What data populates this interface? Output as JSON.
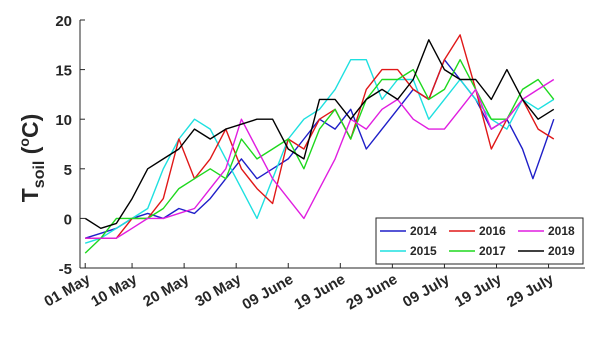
{
  "chart_data": {
    "type": "line",
    "ylabel": {
      "main": "T",
      "sub": "soil",
      "unit_open": " (",
      "unit_sup": "o",
      "unit_close": "C)"
    },
    "ylim": [
      -5,
      20
    ],
    "yticks": [
      -5,
      0,
      5,
      10,
      15,
      20
    ],
    "xlim": [
      "2019-04-30",
      "2019-08-05"
    ],
    "xticks": [
      {
        "date": "2019-05-01",
        "label": "01 May"
      },
      {
        "date": "2019-05-10",
        "label": "10 May"
      },
      {
        "date": "2019-05-20",
        "label": "20 May"
      },
      {
        "date": "2019-05-30",
        "label": "30 May"
      },
      {
        "date": "2019-06-09",
        "label": "09 June"
      },
      {
        "date": "2019-06-19",
        "label": "19 June"
      },
      {
        "date": "2019-06-29",
        "label": "29 June"
      },
      {
        "date": "2019-07-09",
        "label": "09 July"
      },
      {
        "date": "2019-07-19",
        "label": "19 July"
      },
      {
        "date": "2019-07-29",
        "label": "29 July"
      }
    ],
    "grid": false,
    "legend_position": "bottom-right",
    "series": [
      {
        "name": "2014",
        "color": "#1f1fc8",
        "x": [
          "2019-05-01",
          "2019-05-04",
          "2019-05-07",
          "2019-05-10",
          "2019-05-13",
          "2019-05-16",
          "2019-05-19",
          "2019-05-22",
          "2019-05-25",
          "2019-05-28",
          "2019-05-31",
          "2019-06-03",
          "2019-06-06",
          "2019-06-09",
          "2019-06-12",
          "2019-06-15",
          "2019-06-18",
          "2019-06-21",
          "2019-06-24",
          "2019-06-27",
          "2019-06-30",
          "2019-07-03",
          "2019-07-06",
          "2019-07-09",
          "2019-07-12",
          "2019-07-15",
          "2019-07-18",
          "2019-07-21",
          "2019-07-24",
          "2019-07-26",
          "2019-07-28",
          "2019-07-30"
        ],
        "y": [
          -2,
          -1.5,
          -1,
          0,
          0.5,
          0,
          1,
          0.5,
          2,
          4,
          6,
          4,
          5,
          6,
          8,
          10,
          9,
          11,
          7,
          9,
          11,
          13,
          12,
          16,
          14,
          12,
          9,
          10,
          7,
          4,
          7,
          10
        ]
      },
      {
        "name": "2015",
        "color": "#1ee0e0",
        "x": [
          "2019-05-01",
          "2019-05-04",
          "2019-05-07",
          "2019-05-10",
          "2019-05-13",
          "2019-05-16",
          "2019-05-19",
          "2019-05-22",
          "2019-05-25",
          "2019-05-28",
          "2019-05-31",
          "2019-06-03",
          "2019-06-06",
          "2019-06-09",
          "2019-06-12",
          "2019-06-15",
          "2019-06-18",
          "2019-06-21",
          "2019-06-24",
          "2019-06-27",
          "2019-06-30",
          "2019-07-03",
          "2019-07-06",
          "2019-07-09",
          "2019-07-12",
          "2019-07-15",
          "2019-07-18",
          "2019-07-21",
          "2019-07-24",
          "2019-07-27",
          "2019-07-30"
        ],
        "y": [
          -2.5,
          -2,
          -1,
          0,
          1,
          5,
          8,
          10,
          9,
          6,
          3,
          0,
          4,
          8,
          10,
          11,
          13,
          16,
          16,
          12,
          14,
          14,
          10,
          12,
          14,
          12,
          10,
          9,
          12,
          11,
          12
        ]
      },
      {
        "name": "2016",
        "color": "#e01818",
        "x": [
          "2019-05-01",
          "2019-05-04",
          "2019-05-07",
          "2019-05-10",
          "2019-05-13",
          "2019-05-16",
          "2019-05-19",
          "2019-05-22",
          "2019-05-25",
          "2019-05-28",
          "2019-05-31",
          "2019-06-03",
          "2019-06-06",
          "2019-06-09",
          "2019-06-12",
          "2019-06-15",
          "2019-06-18",
          "2019-06-21",
          "2019-06-24",
          "2019-06-27",
          "2019-06-30",
          "2019-07-03",
          "2019-07-06",
          "2019-07-09",
          "2019-07-12",
          "2019-07-15",
          "2019-07-18",
          "2019-07-21",
          "2019-07-24",
          "2019-07-27",
          "2019-07-30"
        ],
        "y": [
          -2,
          -2,
          -2,
          0,
          0,
          2,
          8,
          4,
          6,
          9,
          5,
          3,
          1.5,
          8,
          7,
          10,
          11,
          8,
          13,
          15,
          15,
          13,
          12,
          16,
          18.5,
          13,
          7,
          10,
          12,
          9,
          8
        ]
      },
      {
        "name": "2017",
        "color": "#1ed81e",
        "x": [
          "2019-05-01",
          "2019-05-04",
          "2019-05-07",
          "2019-05-10",
          "2019-05-13",
          "2019-05-16",
          "2019-05-19",
          "2019-05-22",
          "2019-05-25",
          "2019-05-28",
          "2019-05-31",
          "2019-06-03",
          "2019-06-06",
          "2019-06-09",
          "2019-06-12",
          "2019-06-15",
          "2019-06-18",
          "2019-06-21",
          "2019-06-24",
          "2019-06-27",
          "2019-06-30",
          "2019-07-03",
          "2019-07-06",
          "2019-07-09",
          "2019-07-12",
          "2019-07-15",
          "2019-07-18",
          "2019-07-21",
          "2019-07-24",
          "2019-07-27",
          "2019-07-30"
        ],
        "y": [
          -3.5,
          -2,
          0,
          0,
          0,
          1,
          3,
          4,
          5,
          4,
          8,
          6,
          7,
          8,
          5,
          9,
          11,
          8,
          12,
          14,
          14,
          15,
          12,
          13,
          16,
          13,
          10,
          10,
          13,
          14,
          12
        ]
      },
      {
        "name": "2018",
        "color": "#e01ee0",
        "x": [
          "2019-05-01",
          "2019-05-04",
          "2019-05-07",
          "2019-05-10",
          "2019-05-13",
          "2019-05-16",
          "2019-05-19",
          "2019-05-22",
          "2019-05-25",
          "2019-05-28",
          "2019-05-31",
          "2019-06-03",
          "2019-06-06",
          "2019-06-09",
          "2019-06-12",
          "2019-06-15",
          "2019-06-18",
          "2019-06-21",
          "2019-06-24",
          "2019-06-27",
          "2019-06-30",
          "2019-07-03",
          "2019-07-06",
          "2019-07-09",
          "2019-07-12",
          "2019-07-15",
          "2019-07-18",
          "2019-07-21",
          "2019-07-24",
          "2019-07-27",
          "2019-07-30"
        ],
        "y": [
          -2,
          -2,
          -2,
          -1,
          0,
          0,
          0.5,
          1,
          3,
          5,
          10,
          7,
          4,
          2,
          0,
          3,
          6,
          10,
          9,
          11,
          12,
          10,
          9,
          9,
          11,
          13,
          9,
          10,
          12,
          13,
          14
        ]
      },
      {
        "name": "2019",
        "color": "#000000",
        "x": [
          "2019-05-01",
          "2019-05-04",
          "2019-05-07",
          "2019-05-10",
          "2019-05-13",
          "2019-05-16",
          "2019-05-19",
          "2019-05-22",
          "2019-05-25",
          "2019-05-28",
          "2019-05-31",
          "2019-06-03",
          "2019-06-06",
          "2019-06-09",
          "2019-06-12",
          "2019-06-15",
          "2019-06-18",
          "2019-06-21",
          "2019-06-24",
          "2019-06-27",
          "2019-06-30",
          "2019-07-03",
          "2019-07-06",
          "2019-07-09",
          "2019-07-12",
          "2019-07-15",
          "2019-07-18",
          "2019-07-21",
          "2019-07-24",
          "2019-07-27",
          "2019-07-30"
        ],
        "y": [
          0,
          -1,
          -0.5,
          2,
          5,
          6,
          7,
          9,
          8,
          9,
          9.5,
          10,
          10,
          7,
          6,
          12,
          12,
          10,
          12,
          13,
          12,
          14,
          18,
          15,
          14,
          14,
          12,
          15,
          12,
          10,
          11
        ]
      }
    ]
  }
}
